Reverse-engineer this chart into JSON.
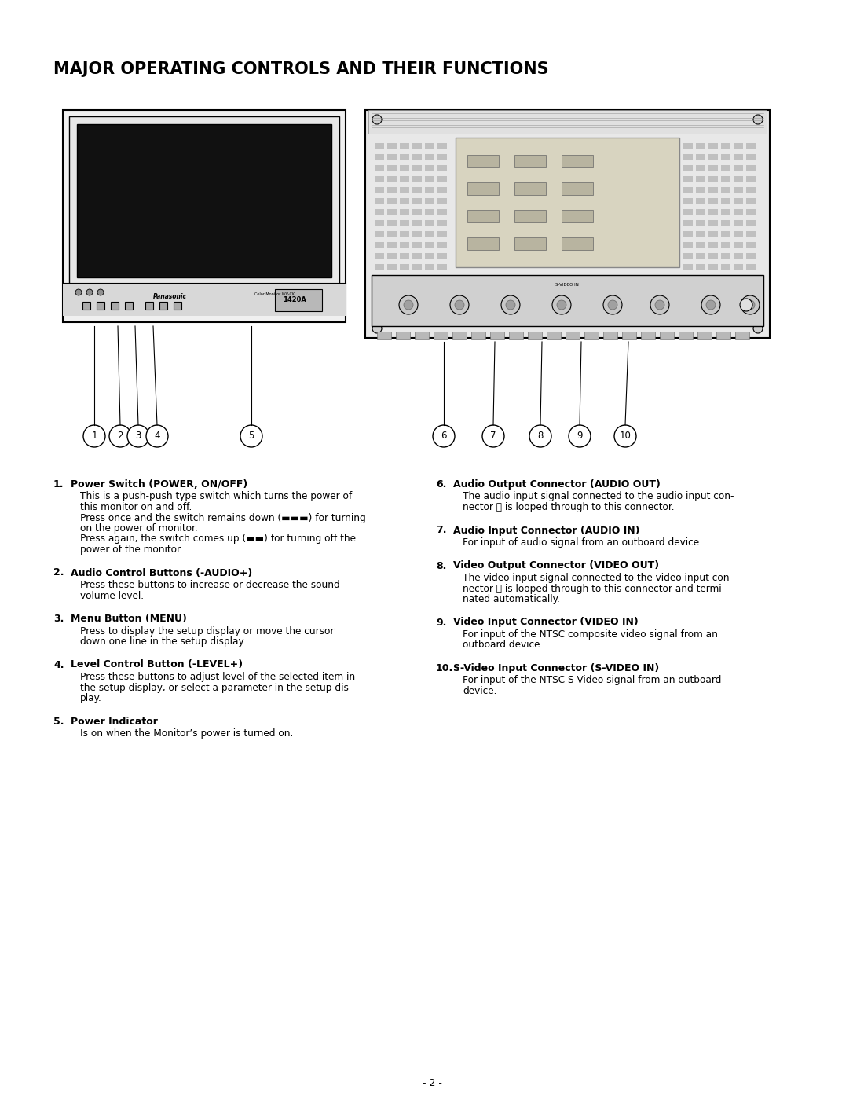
{
  "title": "MAJOR OPERATING CONTROLS AND THEIR FUNCTIONS",
  "background_color": "#ffffff",
  "text_color": "#000000",
  "title_fontsize": 15,
  "body_fontsize": 8.5,
  "items_left": [
    {
      "num": "1.",
      "heading": "Power Switch (POWER, ON/OFF)",
      "body1": "This is a push-push type switch which turns the power of",
      "body2": "this monitor on and off.",
      "body3": "Press once and the switch remains down (▬▬▬) for turning",
      "body4": "on the power of monitor.",
      "body5": "Press again, the switch comes up (▬▬) for turning off the",
      "body6": "power of the monitor."
    },
    {
      "num": "2.",
      "heading": "Audio Control Buttons (-AUDIO+)",
      "body1": "Press these buttons to increase or decrease the sound",
      "body2": "volume level.",
      "body3": "",
      "body4": "",
      "body5": "",
      "body6": ""
    },
    {
      "num": "3.",
      "heading": "Menu Button (MENU)",
      "body1": "Press to display the setup display or move the cursor",
      "body2": "down one line in the setup display.",
      "body3": "",
      "body4": "",
      "body5": "",
      "body6": ""
    },
    {
      "num": "4.",
      "heading": "Level Control Button (-LEVEL+)",
      "body1": "Press these buttons to adjust level of the selected item in",
      "body2": "the setup display, or select a parameter in the setup dis-",
      "body3": "play.",
      "body4": "",
      "body5": "",
      "body6": ""
    },
    {
      "num": "5.",
      "heading": "Power Indicator",
      "body1": "Is on when the Monitor’s power is turned on.",
      "body2": "",
      "body3": "",
      "body4": "",
      "body5": "",
      "body6": ""
    }
  ],
  "items_right": [
    {
      "num": "6.",
      "heading": "Audio Output Connector (AUDIO OUT)",
      "body1": "The audio input signal connected to the audio input con-",
      "body2": "nector ⓦ is looped through to this connector.",
      "body3": "",
      "body4": "",
      "body5": "",
      "body6": ""
    },
    {
      "num": "7.",
      "heading": "Audio Input Connector (AUDIO IN)",
      "body1": "For input of audio signal from an outboard device.",
      "body2": "",
      "body3": "",
      "body4": "",
      "body5": "",
      "body6": ""
    },
    {
      "num": "8.",
      "heading": "Video Output Connector (VIDEO OUT)",
      "body1": "The video input signal connected to the video input con-",
      "body2": "nector ⓨ is looped through to this connector and termi-",
      "body3": "nated automatically.",
      "body4": "",
      "body5": "",
      "body6": ""
    },
    {
      "num": "9.",
      "heading": "Video Input Connector (VIDEO IN)",
      "body1": "For input of the NTSC composite video signal from an",
      "body2": "outboard device.",
      "body3": "",
      "body4": "",
      "body5": "",
      "body6": ""
    },
    {
      "num": "10.",
      "heading": "S-Video Input Connector (S-VIDEO IN)",
      "body1": "For input of the NTSC S-Video signal from an outboard",
      "body2": "device.",
      "body3": "",
      "body4": "",
      "body5": "",
      "body6": ""
    }
  ],
  "page_number": "- 2 -",
  "left_items_bodies": [
    [
      "This is a push-push type switch which turns the power of",
      "this monitor on and off.",
      "Press once and the switch remains down (▬▬▬) for turning",
      "on the power of monitor.",
      "Press again, the switch comes up (▬▬) for turning off the",
      "power of the monitor."
    ],
    [
      "Press these buttons to increase or decrease the sound",
      "volume level."
    ],
    [
      "Press to display the setup display or move the cursor",
      "down one line in the setup display."
    ],
    [
      "Press these buttons to adjust level of the selected item in",
      "the setup display, or select a parameter in the setup dis-",
      "play."
    ],
    [
      "Is on when the Monitor’s power is turned on."
    ]
  ],
  "left_items_headings": [
    "Power Switch (POWER, ON/OFF)",
    "Audio Control Buttons (-AUDIO+)",
    "Menu Button (MENU)",
    "Level Control Button (-LEVEL+)",
    "Power Indicator"
  ],
  "left_items_nums": [
    "1.",
    "2.",
    "3.",
    "4.",
    "5."
  ],
  "right_items_bodies": [
    [
      "The audio input signal connected to the audio input con-",
      "nector ⓦ is looped through to this connector."
    ],
    [
      "For input of audio signal from an outboard device."
    ],
    [
      "The video input signal connected to the video input con-",
      "nector ⓨ is looped through to this connector and termi-",
      "nated automatically."
    ],
    [
      "For input of the NTSC composite video signal from an",
      "outboard device."
    ],
    [
      "For input of the NTSC S-Video signal from an outboard",
      "device."
    ]
  ],
  "right_items_headings": [
    "Audio Output Connector (AUDIO OUT)",
    "Audio Input Connector (AUDIO IN)",
    "Video Output Connector (VIDEO OUT)",
    "Video Input Connector (VIDEO IN)",
    "S-Video Input Connector (S-VIDEO IN)"
  ],
  "right_items_nums": [
    "6.",
    "7.",
    "8.",
    "9.",
    "10."
  ]
}
